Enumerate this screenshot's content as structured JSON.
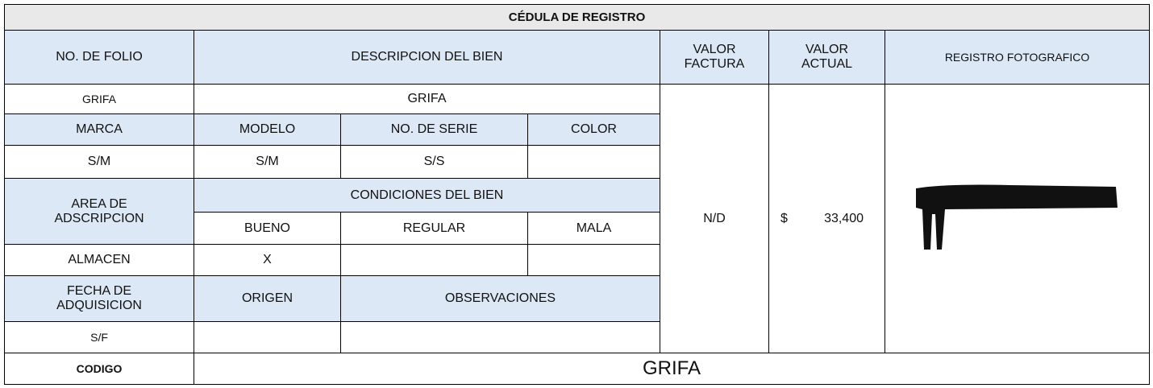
{
  "title": "CÉDULA DE REGISTRO",
  "headers": {
    "folio": "NO. DE FOLIO",
    "descripcion": "DESCRIPCION DEL BIEN",
    "valor_factura": "VALOR FACTURA",
    "valor_actual": "VALOR ACTUAL",
    "registro": "REGISTRO FOTOGRAFICO",
    "marca": "MARCA",
    "modelo": "MODELO",
    "serie": "NO. DE SERIE",
    "color": "COLOR",
    "area": "AREA DE ADSCRIPCION",
    "condiciones": "CONDICIONES DEL BIEN",
    "bueno": "BUENO",
    "regular": "REGULAR",
    "mala": "MALA",
    "fecha": "FECHA DE ADQUISICION",
    "origen": "ORIGEN",
    "observaciones": "OBSERVACIONES",
    "codigo": "CODIGO"
  },
  "values": {
    "folio": "GRIFA",
    "descripcion": "GRIFA",
    "marca": "S/M",
    "modelo": "S/M",
    "serie": "S/S",
    "area": "ALMACEN",
    "bueno": "X",
    "fecha": "S/F",
    "valor_factura": "N/D",
    "currency": "$",
    "valor_actual": "33,400",
    "codigo": "GRIFA"
  }
}
